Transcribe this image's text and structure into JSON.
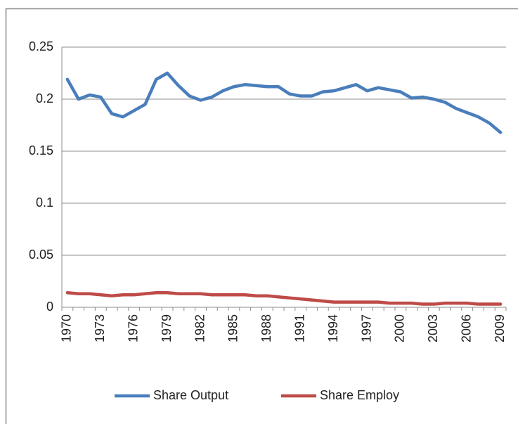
{
  "chart_data": {
    "type": "line",
    "categories": [
      "1970",
      null,
      null,
      "1973",
      null,
      null,
      "1976",
      null,
      null,
      "1979",
      null,
      null,
      "1982",
      null,
      null,
      "1985",
      null,
      null,
      "1988",
      null,
      null,
      "1991",
      null,
      null,
      "1994",
      null,
      null,
      "1997",
      null,
      null,
      "2000",
      null,
      null,
      "2003",
      null,
      null,
      "2006",
      null,
      null,
      "2009"
    ],
    "series": [
      {
        "name": "Share Output",
        "color": "#4a7ebb",
        "values": [
          0.219,
          0.2,
          0.204,
          0.202,
          0.186,
          0.183,
          0.189,
          0.195,
          0.219,
          0.225,
          0.213,
          0.203,
          0.199,
          0.202,
          0.208,
          0.212,
          0.214,
          0.213,
          0.212,
          0.212,
          0.205,
          0.203,
          0.203,
          0.207,
          0.208,
          0.211,
          0.214,
          0.208,
          0.211,
          0.209,
          0.207,
          0.201,
          0.202,
          0.2,
          0.197,
          0.191,
          0.187,
          0.183,
          0.177,
          0.168
        ]
      },
      {
        "name": "Share Employ",
        "color": "#be4b48",
        "values": [
          0.014,
          0.013,
          0.013,
          0.012,
          0.011,
          0.012,
          0.012,
          0.013,
          0.014,
          0.014,
          0.013,
          0.013,
          0.013,
          0.012,
          0.012,
          0.012,
          0.012,
          0.011,
          0.011,
          0.01,
          0.009,
          0.008,
          0.007,
          0.006,
          0.005,
          0.005,
          0.005,
          0.005,
          0.005,
          0.004,
          0.004,
          0.004,
          0.003,
          0.003,
          0.004,
          0.004,
          0.004,
          0.003,
          0.003,
          0.003
        ]
      }
    ],
    "ylim": [
      0,
      0.25
    ],
    "yticks": [
      0,
      0.05,
      0.1,
      0.15,
      0.2,
      0.25
    ],
    "grid": true,
    "legend": "bottom"
  }
}
